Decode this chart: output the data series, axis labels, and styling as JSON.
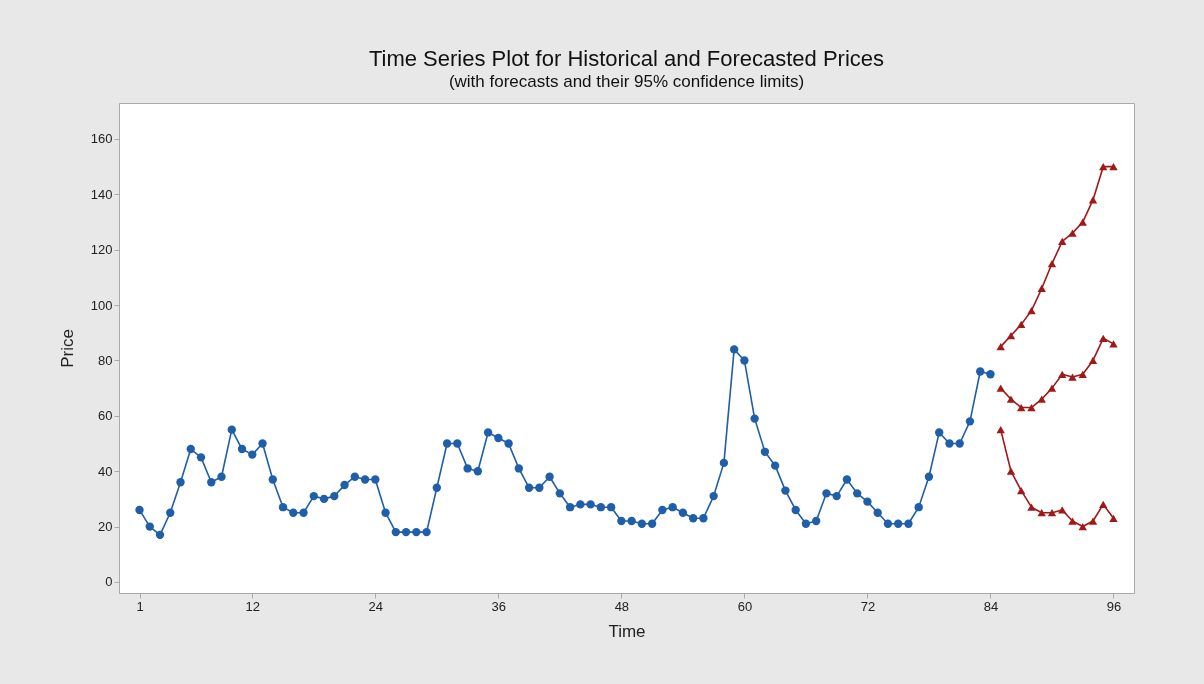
{
  "chart_data": {
    "type": "line",
    "title": "Time Series Plot for Historical and Forecasted Prices",
    "subtitle": "(with forecasts and their 95% confidence limits)",
    "xlabel": "Time",
    "ylabel": "Price",
    "xlim": [
      -1,
      98
    ],
    "xticks": [
      1,
      12,
      24,
      36,
      48,
      60,
      72,
      84,
      96
    ],
    "ylim": [
      -4,
      173
    ],
    "yticks": [
      0,
      20,
      40,
      60,
      80,
      100,
      120,
      140,
      160
    ],
    "grid": false,
    "line_style": "solid",
    "series": [
      {
        "color": "#1f5ea8",
        "marker": "circle",
        "x": [
          1,
          2,
          3,
          4,
          5,
          6,
          7,
          8,
          9,
          10,
          11,
          12,
          13,
          14,
          15,
          16,
          17,
          18,
          19,
          20,
          21,
          22,
          23,
          24,
          25,
          26,
          27,
          28,
          29,
          30,
          31,
          32,
          33,
          34,
          35,
          36,
          37,
          38,
          39,
          40,
          41,
          42,
          43,
          44,
          45,
          46,
          47,
          48,
          49,
          50,
          51,
          52,
          53,
          54,
          55,
          56,
          57,
          58,
          59,
          60,
          61,
          62,
          63,
          64,
          65,
          66,
          67,
          68,
          69,
          70,
          71,
          72,
          73,
          74,
          75,
          76,
          77,
          78,
          79,
          80,
          81,
          82,
          83,
          84
        ],
        "values": [
          26,
          20,
          17,
          25,
          36,
          48,
          45,
          36,
          38,
          55,
          48,
          46,
          50,
          37,
          27,
          25,
          25,
          31,
          30,
          31,
          35,
          38,
          37,
          37,
          25,
          18,
          18,
          18,
          18,
          34,
          50,
          50,
          41,
          40,
          54,
          52,
          50,
          41,
          34,
          34,
          38,
          32,
          27,
          28,
          28,
          27,
          27,
          22,
          22,
          21,
          21,
          26,
          27,
          25,
          23,
          23,
          31,
          43,
          84,
          80,
          59,
          47,
          42,
          33,
          26,
          21,
          22,
          32,
          31,
          37,
          32,
          29,
          25,
          21,
          21,
          21,
          27,
          38,
          54,
          50,
          50,
          58,
          76,
          75
        ]
      },
      {
        "color": "#a01818",
        "marker": "triangle",
        "x": [
          85,
          86,
          87,
          88,
          89,
          90,
          91,
          92,
          93,
          94,
          95,
          96
        ],
        "values": [
          85,
          89,
          93,
          98,
          106,
          115,
          123,
          126,
          130,
          138,
          150,
          150
        ]
      },
      {
        "color": "#a01818",
        "marker": "triangle",
        "x": [
          85,
          86,
          87,
          88,
          89,
          90,
          91,
          92,
          93,
          94,
          95,
          96
        ],
        "values": [
          70,
          66,
          63,
          63,
          66,
          70,
          75,
          74,
          75,
          80,
          88,
          86
        ]
      },
      {
        "color": "#a01818",
        "marker": "triangle",
        "x": [
          85,
          86,
          87,
          88,
          89,
          90,
          91,
          92,
          93,
          94,
          95,
          96
        ],
        "values": [
          55,
          40,
          33,
          27,
          25,
          25,
          26,
          22,
          20,
          22,
          28,
          23
        ]
      }
    ]
  }
}
